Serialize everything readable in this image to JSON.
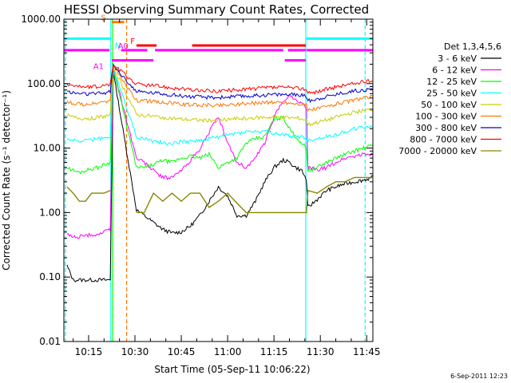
{
  "chart_data": {
    "type": "line",
    "title": "HESSI Observing Summary Count Rates, Corrected",
    "xlabel": "Start Time (05-Sep-11 10:06:22)",
    "ylabel": "Corrected Count Rate (s⁻¹ detector⁻¹)",
    "yscale": "log",
    "ylim": [
      0.01,
      1000
    ],
    "xlim_minutes_from_1000": [
      7,
      47
    ],
    "x_tick_labels": [
      "10:15",
      "10:30",
      "10:45",
      "11:00",
      "11:15",
      "11:30",
      "11:45"
    ],
    "y_tick_labels": [
      "0.01",
      "0.10",
      "1.00",
      "10.00",
      "100.00",
      "1000.00"
    ],
    "legend_title": "Det 1,3,4,5,6",
    "legend_position": "right, outside plot",
    "x": [
      8,
      10,
      12,
      14,
      16,
      18,
      20,
      22,
      23,
      30.5,
      33,
      36,
      39,
      42,
      45,
      48,
      51,
      54,
      57,
      60,
      63,
      66,
      69,
      72,
      75,
      78,
      80,
      82,
      84,
      85.5,
      86,
      89,
      92,
      95,
      98,
      101,
      104,
      107
    ],
    "series": [
      {
        "name": "3 - 6 keV",
        "color": "#000000",
        "values": [
          0.15,
          0.09,
          0.09,
          0.09,
          0.09,
          0.09,
          0.09,
          0.09,
          150,
          1.1,
          0.9,
          0.7,
          0.55,
          0.48,
          0.5,
          0.62,
          0.9,
          1.5,
          2.5,
          1.8,
          0.9,
          0.9,
          1.5,
          3,
          5,
          6.5,
          6,
          5,
          4.5,
          3.2,
          1.2,
          1.6,
          2.2,
          2.5,
          2.8,
          3,
          3.2,
          3.5
        ]
      },
      {
        "name": "6 - 12 keV",
        "color": "#ff00ff",
        "values": [
          0.45,
          0.42,
          0.42,
          0.44,
          0.45,
          0.46,
          0.5,
          0.55,
          170,
          7,
          6,
          4.5,
          3.5,
          3.5,
          4.5,
          6.5,
          9.5,
          18,
          30,
          12,
          6,
          5,
          7,
          12,
          30,
          55,
          65,
          58,
          50,
          40,
          5,
          4.5,
          5,
          6,
          7,
          7.5,
          8,
          8
        ]
      },
      {
        "name": "12 - 25 keV",
        "color": "#00ff00",
        "values": [
          5,
          4.5,
          4.2,
          4.5,
          4.8,
          5,
          5.5,
          6,
          170,
          5,
          5,
          5.5,
          6.5,
          6,
          7,
          7.5,
          7,
          8,
          5,
          6,
          7,
          12,
          14,
          15,
          28,
          30,
          20,
          15,
          12,
          10,
          4.5,
          5,
          6,
          7,
          8,
          9,
          10,
          11
        ]
      },
      {
        "name": "25 - 50 keV",
        "color": "#00ffff",
        "values": [
          14,
          13,
          13,
          13,
          13.5,
          14,
          14,
          15,
          175,
          15,
          14,
          13,
          12,
          12,
          12.5,
          13,
          13,
          14,
          15,
          16,
          17,
          18,
          18,
          18,
          17,
          16,
          15.5,
          15,
          15,
          14,
          13,
          14,
          15,
          16,
          18,
          20,
          21,
          22
        ]
      },
      {
        "name": "50 - 100 keV",
        "color": "#cccc00",
        "values": [
          32,
          30,
          29,
          29,
          29,
          30,
          31,
          32,
          180,
          33,
          32,
          31,
          30,
          29,
          28,
          27.5,
          27,
          27,
          27,
          28,
          28.5,
          29,
          29.5,
          30,
          30,
          30,
          29.5,
          29,
          28.5,
          27,
          23,
          25,
          27,
          30,
          33,
          36,
          38,
          40
        ]
      },
      {
        "name": "100 - 300 keV",
        "color": "#ff7700",
        "values": [
          52,
          50,
          48,
          48,
          48,
          50,
          52,
          54,
          185,
          55,
          54,
          53,
          51,
          50,
          48,
          47,
          46.5,
          46,
          46,
          47,
          48,
          49,
          50,
          51,
          51,
          51,
          50,
          49,
          48,
          46,
          38,
          41,
          44,
          48,
          52,
          56,
          60,
          62
        ]
      },
      {
        "name": "300 - 800 keV",
        "color": "#0000cc",
        "values": [
          75,
          72,
          70,
          69,
          69,
          70,
          72,
          75,
          190,
          75,
          74,
          72,
          70,
          67,
          65,
          63,
          62,
          61,
          61,
          62,
          63,
          64,
          65,
          67,
          68,
          68,
          67.5,
          67,
          66,
          64,
          54,
          58,
          63,
          68,
          73,
          77,
          80,
          82
        ]
      },
      {
        "name": "800 - 7000 keV",
        "color": "#ff0000",
        "values": [
          100,
          95,
          90,
          88,
          88,
          90,
          93,
          98,
          195,
          98,
          96,
          93,
          90,
          86,
          83,
          80,
          78,
          77,
          77,
          78,
          80,
          82,
          84,
          86,
          87,
          87,
          86,
          85,
          84,
          82,
          70,
          75,
          82,
          88,
          95,
          100,
          106,
          110
        ]
      },
      {
        "name": "7000 - 20000 keV",
        "color": "#888800",
        "values": [
          2.5,
          2,
          1.5,
          1.5,
          2,
          2,
          2,
          2.2,
          null,
          1,
          1,
          2,
          1.5,
          2,
          1.5,
          2,
          2,
          1.2,
          1.5,
          2,
          1.4,
          1,
          1,
          1,
          1,
          1,
          1,
          1,
          1,
          1,
          2.2,
          2,
          2.5,
          3,
          3,
          3.5,
          3.5,
          3.5
        ]
      }
    ],
    "vertical_lines": [
      {
        "x": 7.5,
        "color": "#00ffff",
        "style": "dashed"
      },
      {
        "x": 22.2,
        "color": "#00ffff",
        "style": "solid"
      },
      {
        "x": 22.8,
        "color": "#00ff00",
        "style": "solid"
      },
      {
        "x": 27.3,
        "color": "#ff7700",
        "style": "dashed"
      },
      {
        "x": 85.3,
        "color": "#00ffff",
        "style": "solid"
      },
      {
        "x": 104.5,
        "color": "#00ffff",
        "style": "dashed"
      }
    ],
    "status_bars": [
      {
        "label": "S",
        "color": "#ff7700",
        "level": 900,
        "segments": [
          [
            22.5,
            26.5
          ]
        ]
      },
      {
        "label": "N",
        "color": "#00ffff",
        "level": 500,
        "segments": [
          [
            7,
            22
          ],
          [
            85.5,
            107
          ]
        ]
      },
      {
        "label": "F",
        "color": "#ff0000",
        "level": 390,
        "segments": [
          [
            30.5,
            37
          ],
          [
            48.5,
            85.3
          ]
        ]
      },
      {
        "label": "A0",
        "color": "#ff00ff",
        "level": 330,
        "segments": [
          [
            7,
            21.8
          ],
          [
            25.5,
            34
          ],
          [
            36.5,
            78
          ],
          [
            79.5,
            85.3
          ],
          [
            85.5,
            107
          ]
        ]
      },
      {
        "label": "A1",
        "color": "#ff00ff",
        "level": 230,
        "segments": [
          [
            22.5,
            36
          ],
          [
            78.5,
            85.3
          ]
        ]
      }
    ],
    "footer_stamp": "6-Sep-2011 12:23",
    "grid": false
  }
}
